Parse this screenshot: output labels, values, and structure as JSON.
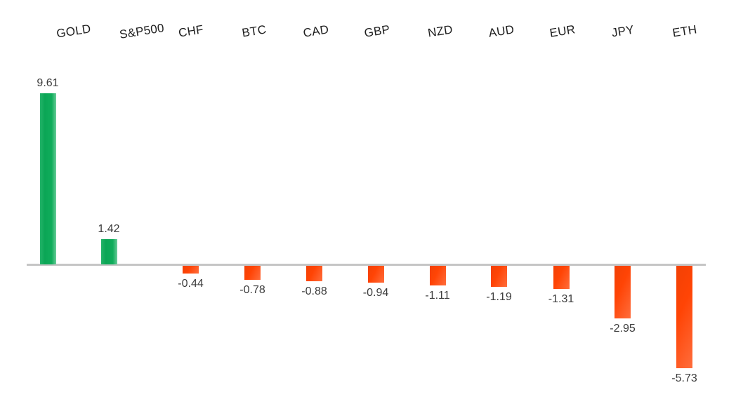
{
  "chart_data": {
    "type": "bar",
    "title": "",
    "orientation": "vertical",
    "categories": [
      "GOLD",
      "S&P500",
      "CHF",
      "BTC",
      "CAD",
      "GBP",
      "NZD",
      "AUD",
      "EUR",
      "JPY",
      "ETH"
    ],
    "values": [
      9.61,
      1.42,
      -0.44,
      -0.78,
      -0.88,
      -0.94,
      -1.11,
      -1.19,
      -1.31,
      -2.95,
      -5.73
    ],
    "value_labels": [
      "9.61",
      "1.42",
      "-0.44",
      "-0.78",
      "-0.88",
      "-0.94",
      "-1.11",
      "-1.19",
      "-1.31",
      "-2.95",
      "-5.73"
    ],
    "baseline": 0,
    "ylim": [
      -6.5,
      10.5
    ],
    "grid": false,
    "legend": false,
    "y_axis_visible": false,
    "data_labels_position": "outside-end",
    "category_labels_position": "top",
    "category_label_rotation_deg": -9,
    "colors": {
      "positive_bar": "#0BAB58",
      "negative_bar": "#FF4405",
      "axis_line": "#C5C5C5",
      "category_label_text": "#1E1E1E",
      "value_label_text": "#3C3C3C"
    }
  }
}
